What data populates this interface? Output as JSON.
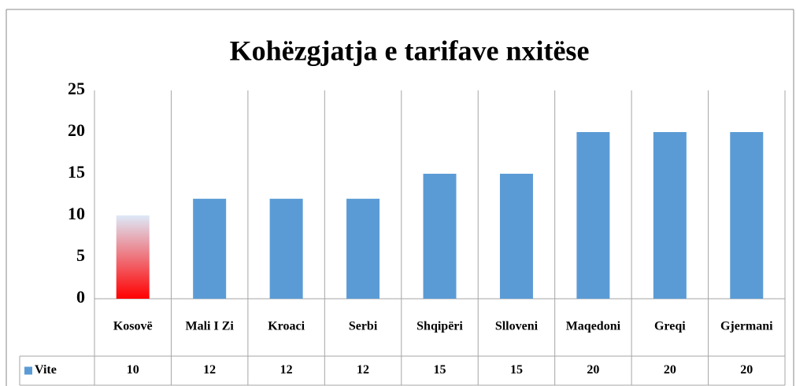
{
  "chart_data": {
    "type": "bar",
    "title": "Kohëzgjatja e tarifave nxitëse",
    "categories": [
      "Kosovë",
      "Mali I Zi",
      "Kroaci",
      "Serbi",
      "Shqipëri",
      "Slloveni",
      "Maqedoni",
      "Greqi",
      "Gjermani"
    ],
    "series": [
      {
        "name": "Vite",
        "color": "#5b9bd5",
        "values": [
          10,
          12,
          12,
          12,
          15,
          15,
          20,
          20,
          20
        ],
        "point_colors": [
          [
            "#ff0000",
            "#dde9f8"
          ],
          null,
          null,
          null,
          null,
          null,
          null,
          null,
          null
        ]
      }
    ],
    "ylim": [
      0,
      25
    ],
    "yticks": [
      0,
      5,
      10,
      15,
      20,
      25
    ],
    "grid": false,
    "data_table": true
  }
}
